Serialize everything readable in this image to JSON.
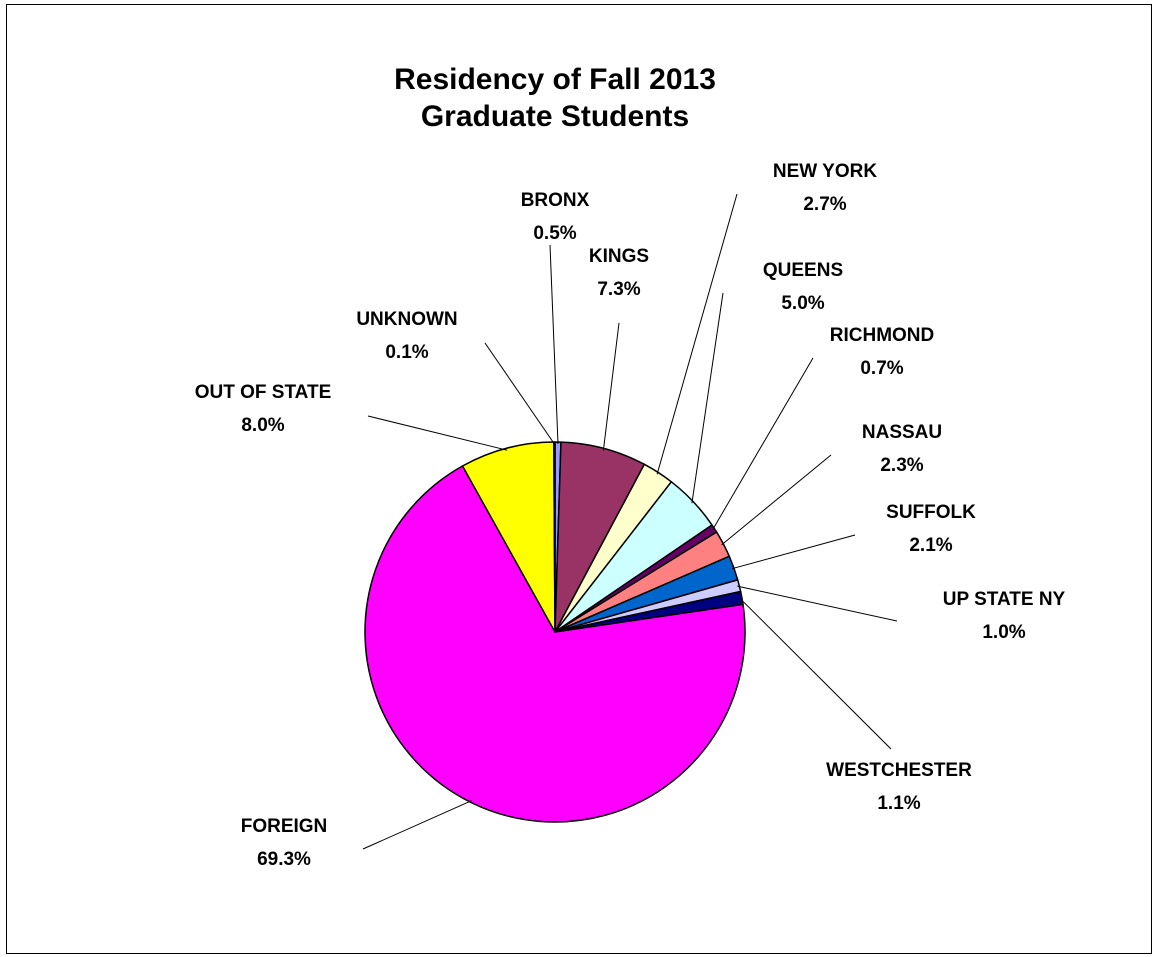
{
  "chart_data": {
    "type": "pie",
    "title": [
      "Residency of Fall 2013",
      "Graduate Students"
    ],
    "start_angle_deg": 0,
    "direction": "clockwise",
    "slices": [
      {
        "name": "BRONX",
        "value": 0.5,
        "label": "0.5%",
        "color": "#9999FF"
      },
      {
        "name": "KINGS",
        "value": 7.3,
        "label": "7.3%",
        "color": "#993366"
      },
      {
        "name": "NEW YORK",
        "value": 2.7,
        "label": "2.7%",
        "color": "#FFFFCC"
      },
      {
        "name": "QUEENS",
        "value": 5.0,
        "label": "5.0%",
        "color": "#CCFFFF"
      },
      {
        "name": "RICHMOND",
        "value": 0.7,
        "label": "0.7%",
        "color": "#660066"
      },
      {
        "name": "NASSAU",
        "value": 2.3,
        "label": "2.3%",
        "color": "#FF8080"
      },
      {
        "name": "SUFFOLK",
        "value": 2.1,
        "label": "2.1%",
        "color": "#0066CC"
      },
      {
        "name": "UP STATE NY",
        "value": 1.0,
        "label": "1.0%",
        "color": "#CCCCFF"
      },
      {
        "name": "WESTCHESTER",
        "value": 1.1,
        "label": "1.1%",
        "color": "#000080"
      },
      {
        "name": "FOREIGN",
        "value": 69.3,
        "label": "69.3%",
        "color": "#FF00FF"
      },
      {
        "name": "OUT OF STATE",
        "value": 8.0,
        "label": "8.0%",
        "color": "#FFFF00"
      },
      {
        "name": "UNKNOWN",
        "value": 0.1,
        "label": "0.1%",
        "color": "#00FFFF"
      }
    ]
  }
}
